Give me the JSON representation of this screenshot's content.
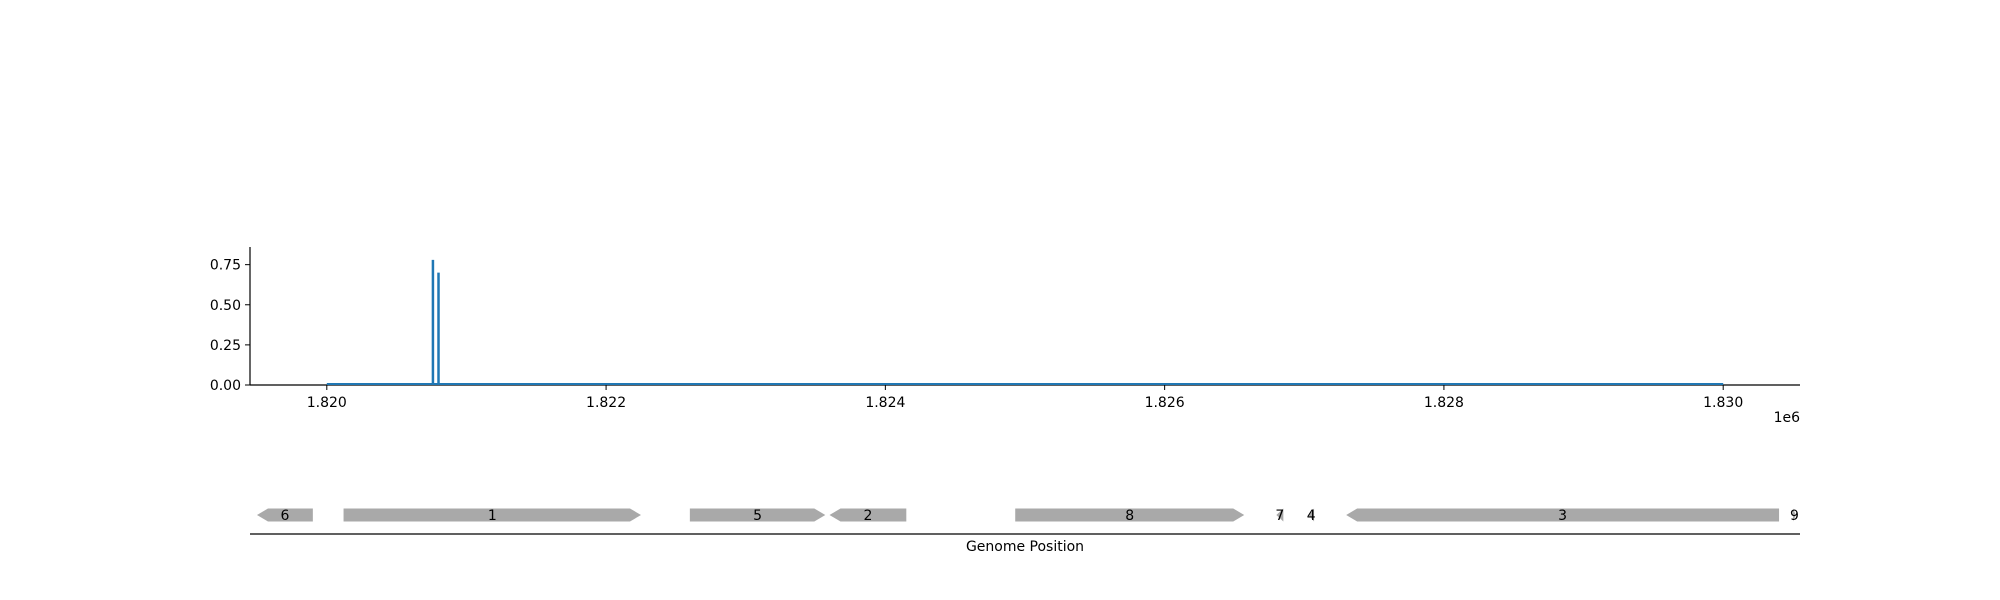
{
  "chart_data": [
    {
      "type": "line",
      "title": "",
      "xlabel": "",
      "ylabel": "",
      "x_offset_label": "1e6",
      "xlim": [
        1.81945,
        1.83055
      ],
      "ylim": [
        0,
        0.86
      ],
      "xticks": [
        1.82,
        1.822,
        1.824,
        1.826,
        1.828,
        1.83
      ],
      "xtick_labels": [
        "1.820",
        "1.822",
        "1.824",
        "1.826",
        "1.828",
        "1.830"
      ],
      "yticks": [
        0.0,
        0.25,
        0.5,
        0.75
      ],
      "ytick_labels": [
        "0.00",
        "0.25",
        "0.50",
        "0.75"
      ],
      "baseline": {
        "from": 1.82,
        "to": 1.83,
        "value": 0
      },
      "series": [
        {
          "color": "#1f77b4",
          "x": [
            1.82076,
            1.8208
          ],
          "y": [
            0.78,
            0.7
          ]
        }
      ],
      "grid": false
    },
    {
      "type": "gene-track",
      "xlabel": "Genome Position",
      "gene_color": "#a9a9a9",
      "genes": [
        {
          "label": "6",
          "start": 1.8195,
          "end": 1.8199,
          "strand": "-"
        },
        {
          "label": "1",
          "start": 1.82012,
          "end": 1.82225,
          "strand": "+"
        },
        {
          "label": "5",
          "start": 1.8226,
          "end": 1.82357,
          "strand": "+"
        },
        {
          "label": "2",
          "start": 1.8236,
          "end": 1.82415,
          "strand": "-"
        },
        {
          "label": "8",
          "start": 1.82493,
          "end": 1.82657,
          "strand": "+"
        },
        {
          "label": "7",
          "start": 1.8268,
          "end": 1.82685,
          "strand": "-"
        },
        {
          "label": "4",
          "start": 1.82703,
          "end": 1.82707,
          "strand": "-"
        },
        {
          "label": "3",
          "start": 1.8273,
          "end": 1.8304,
          "strand": "-"
        },
        {
          "label": "9",
          "start": 1.8305,
          "end": 1.83052,
          "strand": "+"
        }
      ]
    }
  ]
}
